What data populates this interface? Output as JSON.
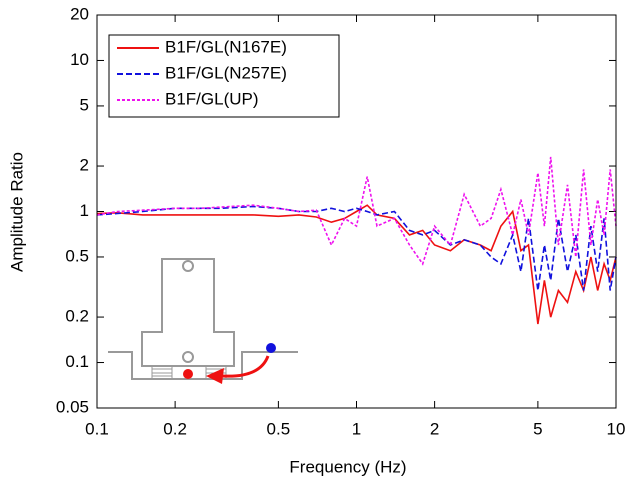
{
  "chart_data": {
    "type": "line",
    "xlabel": "Frequency (Hz)",
    "ylabel": "Amplitude Ratio",
    "xlog": true,
    "ylog": true,
    "xlim": [
      0.1,
      10
    ],
    "ylim": [
      0.05,
      20
    ],
    "xticks": [
      0.1,
      0.2,
      0.5,
      1,
      2,
      5,
      10
    ],
    "yticks": [
      0.05,
      0.1,
      0.2,
      0.5,
      1,
      2,
      5,
      10,
      20
    ],
    "legend": "upper left",
    "x": [
      0.1,
      0.12,
      0.15,
      0.2,
      0.25,
      0.3,
      0.4,
      0.5,
      0.6,
      0.7,
      0.8,
      0.9,
      1.0,
      1.1,
      1.2,
      1.4,
      1.6,
      1.8,
      2.0,
      2.3,
      2.6,
      3.0,
      3.3,
      3.6,
      4.0,
      4.3,
      4.6,
      5.0,
      5.3,
      5.6,
      6.0,
      6.5,
      7.0,
      7.5,
      8.0,
      8.5,
      9.0,
      9.5,
      10
    ],
    "series": [
      {
        "name": "B1F/GL(N167E)",
        "color": "#ee1111",
        "dash": "solid",
        "values": [
          0.97,
          0.98,
          0.95,
          0.95,
          0.95,
          0.95,
          0.95,
          0.93,
          0.95,
          0.92,
          0.85,
          0.9,
          1.0,
          1.1,
          0.95,
          0.9,
          0.7,
          0.75,
          0.6,
          0.55,
          0.65,
          0.6,
          0.55,
          0.8,
          1.0,
          0.55,
          0.6,
          0.18,
          0.35,
          0.2,
          0.3,
          0.25,
          0.4,
          0.3,
          0.5,
          0.3,
          0.45,
          0.35,
          0.5
        ]
      },
      {
        "name": "B1F/GL(N257E)",
        "color": "#1111dd",
        "dash": "dashed",
        "values": [
          0.95,
          0.97,
          1.0,
          1.05,
          1.05,
          1.05,
          1.08,
          1.05,
          1.0,
          1.0,
          1.05,
          1.0,
          1.05,
          1.0,
          0.95,
          1.0,
          0.75,
          0.7,
          0.75,
          0.6,
          0.65,
          0.6,
          0.5,
          0.45,
          0.7,
          0.4,
          0.9,
          0.3,
          0.6,
          0.35,
          0.9,
          0.4,
          0.7,
          0.3,
          0.8,
          0.4,
          0.9,
          0.3,
          0.5
        ]
      },
      {
        "name": "B1F/GL(UP)",
        "color": "#ee11ee",
        "dash": "dotted",
        "values": [
          0.95,
          1.0,
          1.02,
          1.05,
          1.05,
          1.07,
          1.1,
          1.05,
          1.0,
          1.02,
          0.6,
          0.9,
          0.8,
          1.7,
          0.8,
          0.9,
          0.6,
          0.45,
          0.8,
          0.6,
          1.3,
          0.8,
          0.9,
          1.4,
          0.7,
          1.2,
          0.7,
          1.8,
          0.8,
          2.3,
          0.6,
          1.5,
          0.5,
          1.9,
          0.6,
          1.2,
          0.7,
          1.9,
          0.8
        ]
      }
    ]
  }
}
